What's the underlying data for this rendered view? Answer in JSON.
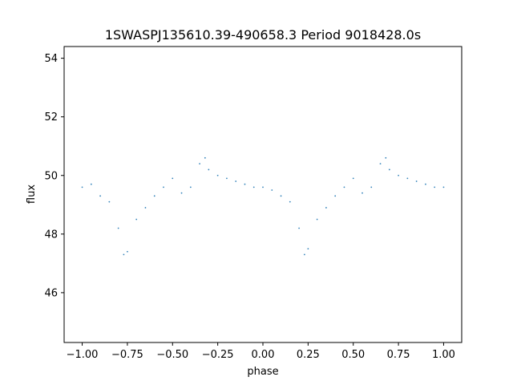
{
  "chart_data": {
    "type": "scatter",
    "title": "1SWASPJ135610.39-490658.3 Period 9018428.0s",
    "xlabel": "phase",
    "ylabel": "flux",
    "xlim": [
      -1.1,
      1.1
    ],
    "ylim": [
      44.3,
      54.4
    ],
    "xticks": [
      -1.0,
      -0.75,
      -0.5,
      -0.25,
      0.0,
      0.25,
      0.5,
      0.75,
      1.0
    ],
    "xtick_labels": [
      "−1.00",
      "−0.75",
      "−0.50",
      "−0.25",
      "0.00",
      "0.25",
      "0.50",
      "0.75",
      "1.00"
    ],
    "yticks": [
      46,
      48,
      50,
      52,
      54
    ],
    "ytick_labels": [
      "46",
      "48",
      "50",
      "52",
      "54"
    ],
    "grid": false,
    "marker_color": "#1f77b4",
    "series": [
      {
        "x": [
          -1.0,
          -0.95,
          -0.9,
          -0.85,
          -0.8,
          -0.77,
          -0.75,
          -0.7,
          -0.65,
          -0.6,
          -0.55,
          -0.5,
          -0.45,
          -0.4,
          -0.35,
          -0.32,
          -0.3,
          -0.25,
          -0.2,
          -0.15,
          -0.1,
          -0.05,
          0.0,
          0.05,
          0.1,
          0.15,
          0.2,
          0.23,
          0.25,
          0.3,
          0.35,
          0.4,
          0.45,
          0.5,
          0.55,
          0.6,
          0.65,
          0.68,
          0.7,
          0.75,
          0.8,
          0.85,
          0.9,
          0.95,
          1.0
        ],
        "y": [
          49.6,
          49.7,
          49.3,
          49.1,
          48.2,
          47.3,
          47.4,
          48.5,
          48.9,
          49.3,
          49.6,
          49.9,
          49.4,
          49.6,
          50.4,
          50.6,
          50.2,
          50.0,
          49.9,
          49.8,
          49.7,
          49.6,
          49.6,
          49.5,
          49.3,
          49.1,
          48.2,
          47.3,
          47.5,
          48.5,
          48.9,
          49.3,
          49.6,
          49.9,
          49.4,
          49.6,
          50.4,
          50.6,
          50.2,
          50.0,
          49.9,
          49.8,
          49.7,
          49.6,
          49.6
        ]
      }
    ]
  }
}
